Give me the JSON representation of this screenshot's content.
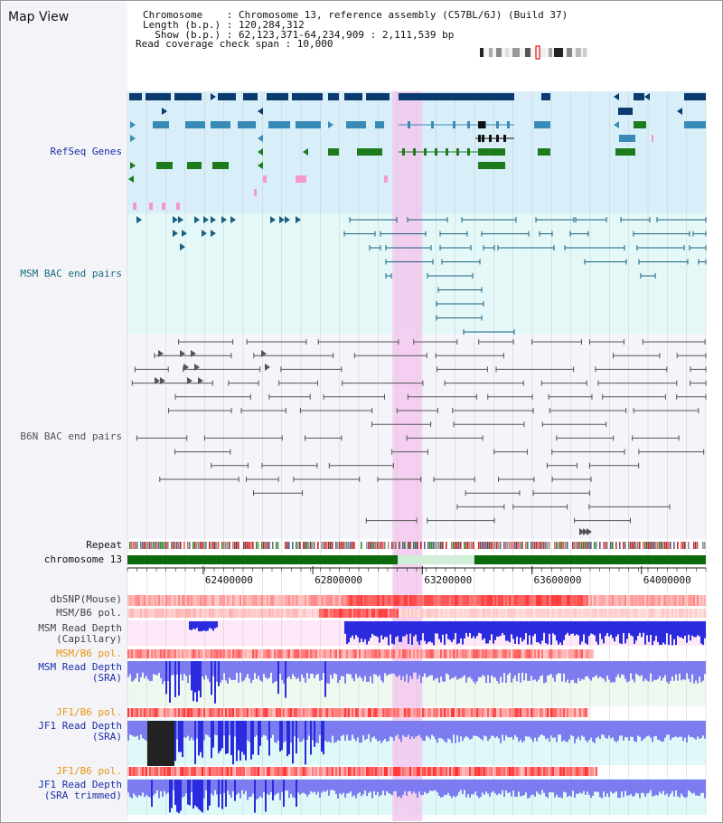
{
  "header": {
    "title": "Map View",
    "chromosome": "Chromosome    : Chromosome 13, reference assembly (C57BL/6J) (Build 37)",
    "length": "Length (b.p.) : 120,284,312",
    "show": "  Show (b.p.) : 62,123,371-64,234,909 : 2,111,539 bp",
    "span": "Read coverage check span : 10,000"
  },
  "tracks": {
    "refseq": "RefSeq Genes",
    "msm_bac": "MSM BAC end pairs",
    "b6n_bac": "B6N BAC end pairs",
    "repeat": "Repeat",
    "chrom": "chromosome 13",
    "dbsnp": "dbSNP(Mouse)",
    "msm_pol": "MSM/B6 pol.",
    "msm_depth_cap": "MSM Read Depth\n(Capillary)",
    "msm_pol_sra": "MSM/B6 pol.",
    "msm_depth_sra": "MSM Read Depth\n(SRA)",
    "jf1_pol": "JF1/B6 pol.",
    "jf1_depth": "JF1 Read Depth\n(SRA)",
    "jf1_pol2": "JF1/B6 pol.",
    "jf1_depth_trim": "JF1 Read Depth\n(SRA trimmed)"
  },
  "axis": {
    "range_bp": [
      62123371,
      64234909
    ],
    "ticks": [
      "62400000",
      "62800000",
      "63200000",
      "63600000",
      "64000000"
    ]
  },
  "colors": {
    "refseq_dark": "#0b3a6e",
    "refseq_mid": "#3a8ab8",
    "refseq_green": "#1d7a1d",
    "refseq_pink": "#f59ac8",
    "msm_bac": "#1a6080",
    "b6n_bac": "#555555",
    "highlight": "#f5c8ee",
    "label_blue": "#1a2fa8",
    "label_teal": "#1a6d80",
    "label_grey": "#555555",
    "label_orange": "#e89510",
    "depth_blue": "#2a2adf",
    "depth_light": "#7c7cf0",
    "chrom_green": "#0c6a0c"
  },
  "highlight_bp": [
    63091000,
    63200000
  ]
}
